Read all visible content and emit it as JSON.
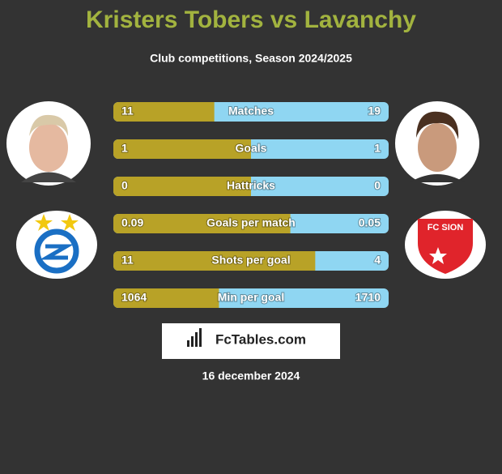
{
  "header": {
    "title": "Kristers Tobers vs Lavanchy",
    "subtitle": "Club competitions, Season 2024/2025"
  },
  "rows": [
    {
      "label": "Matches",
      "left": 11,
      "right": 19
    },
    {
      "label": "Goals",
      "left": 1,
      "right": 1
    },
    {
      "label": "Hattricks",
      "left": 0,
      "right": 0
    },
    {
      "label": "Goals per match",
      "left": 0.09,
      "right": 0.05
    },
    {
      "label": "Shots per goal",
      "left": 11,
      "right": 4
    },
    {
      "label": "Min per goal",
      "left": 1064,
      "right": 1710
    }
  ],
  "colors": {
    "left": "#b8a227",
    "right": "#8fd6f2"
  },
  "right_club_logo": "FC SION",
  "brand": "FcTables.com",
  "date": "16 december 2024"
}
